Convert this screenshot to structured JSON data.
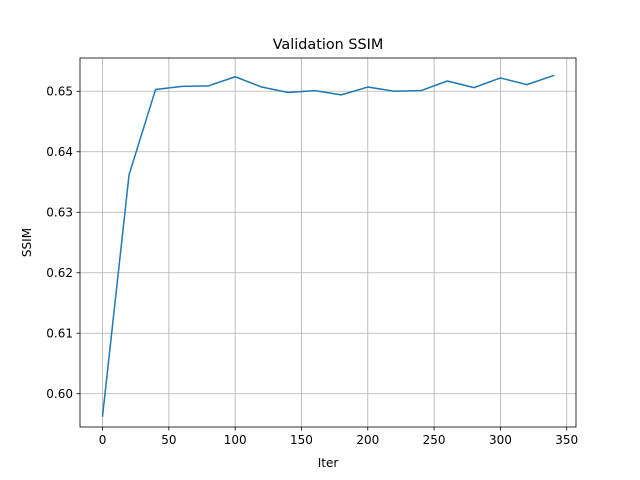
{
  "chart_data": {
    "type": "line",
    "title": "Validation SSIM",
    "xlabel": "Iter",
    "ylabel": "SSIM",
    "xlim": [
      -17,
      357
    ],
    "ylim": [
      0.5945,
      0.6555
    ],
    "xticks": [
      0,
      50,
      100,
      150,
      200,
      250,
      300,
      350
    ],
    "yticks": [
      0.6,
      0.61,
      0.62,
      0.63,
      0.64,
      0.65
    ],
    "ytick_labels": [
      "0.60",
      "0.61",
      "0.62",
      "0.63",
      "0.64",
      "0.65"
    ],
    "grid": true,
    "series": [
      {
        "color": "#1f77b4",
        "x": [
          0,
          20,
          40,
          60,
          80,
          100,
          120,
          140,
          160,
          180,
          200,
          220,
          240,
          260,
          280,
          300,
          320,
          340
        ],
        "y": [
          0.5963,
          0.6362,
          0.6503,
          0.6508,
          0.6509,
          0.6524,
          0.6507,
          0.6498,
          0.6501,
          0.6494,
          0.6507,
          0.65,
          0.6501,
          0.6517,
          0.6506,
          0.6522,
          0.6511,
          0.6526
        ]
      }
    ]
  }
}
